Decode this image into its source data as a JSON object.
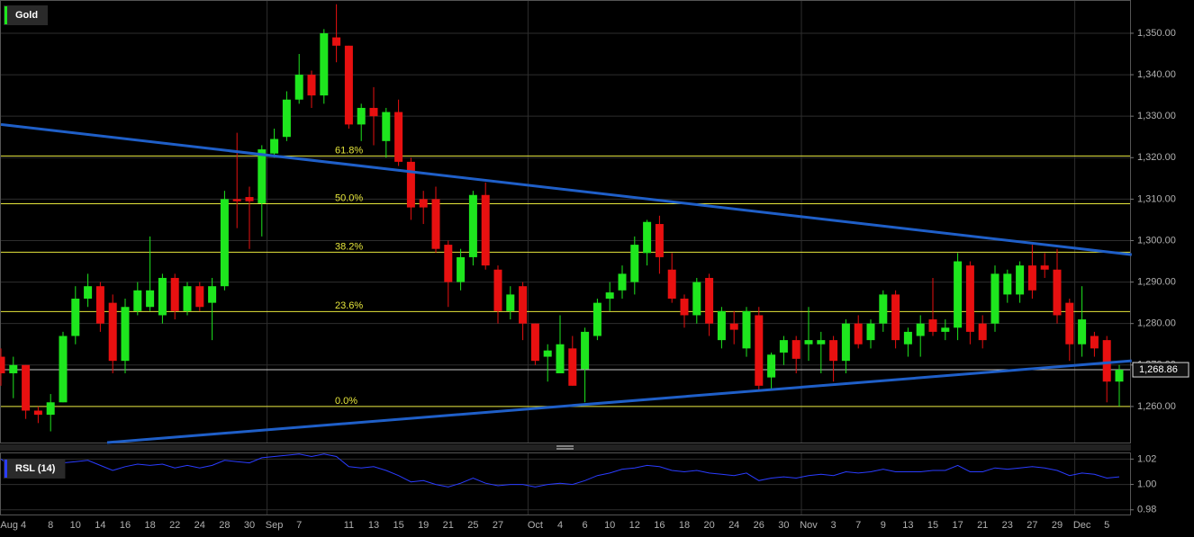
{
  "chart_data": [
    {
      "type": "candlestick",
      "title": "Gold",
      "categories": [
        null,
        "Aug 4",
        null,
        null,
        "8",
        null,
        "10",
        null,
        "14",
        null,
        "16",
        null,
        "18",
        null,
        "22",
        null,
        "24",
        null,
        "28",
        null,
        "30",
        null,
        "Sep",
        null,
        "7",
        null,
        null,
        null,
        "11",
        null,
        "13",
        null,
        "15",
        null,
        "19",
        null,
        "21",
        null,
        "25",
        null,
        "27",
        null,
        null,
        "Oct",
        null,
        "4",
        null,
        "6",
        null,
        "10",
        null,
        "12",
        null,
        "16",
        null,
        "18",
        null,
        "20",
        null,
        "24",
        null,
        "26",
        null,
        "30",
        null,
        "Nov",
        null,
        "3",
        null,
        "7",
        null,
        "9",
        null,
        "13",
        null,
        "15",
        null,
        "17",
        null,
        "21",
        null,
        "23",
        null,
        "27",
        null,
        "29",
        null,
        "Dec",
        null,
        "5",
        null
      ],
      "open": [
        1272,
        1268,
        1270,
        1259,
        1258,
        1261,
        1277,
        1286,
        1289,
        1285,
        1271,
        1283,
        1284,
        1282,
        1291,
        1283,
        1289,
        1285,
        1289,
        1310,
        1310.5,
        1309,
        1321,
        1325,
        1334,
        1340,
        1335,
        1349,
        1347,
        1328,
        1332,
        1324,
        1331,
        1319,
        1310,
        1310,
        1299,
        1290,
        1296,
        1311,
        1293,
        1283,
        1289,
        1280,
        1272,
        1268,
        1274,
        1269,
        1277,
        1286,
        1288,
        1290,
        1297,
        1304,
        1293,
        1286,
        1282,
        1291,
        1276,
        1280,
        1274,
        1282,
        1267,
        1273,
        1276,
        1275,
        1275,
        1276,
        1271,
        1280,
        1276,
        1280,
        1287,
        1275,
        1277,
        1281,
        1278,
        1279,
        1294,
        1280,
        1280,
        1287,
        1287,
        1294,
        1294,
        1293,
        1285,
        1275,
        1277,
        1276,
        1266
      ],
      "high": [
        1274,
        1272,
        1270,
        1260,
        1263,
        1278,
        1289,
        1292,
        1290,
        1287,
        1286,
        1290,
        1301,
        1292,
        1292,
        1290,
        1290,
        1291,
        1312,
        1326,
        1313,
        1323,
        1327,
        1336,
        1345,
        1341,
        1351,
        1357,
        1347,
        1333,
        1337,
        1332,
        1334,
        1320,
        1312,
        1313,
        1300,
        1298,
        1312,
        1314,
        1294,
        1289,
        1290,
        1280,
        1275,
        1282,
        1277,
        1279,
        1286,
        1290,
        1294,
        1301,
        1305,
        1306,
        1297,
        1287,
        1291,
        1292,
        1284,
        1283,
        1284,
        1284,
        1273,
        1277,
        1277,
        1284,
        1278,
        1277,
        1281,
        1282,
        1281,
        1288,
        1288,
        1279,
        1282,
        1291,
        1281,
        1297,
        1295,
        1282,
        1294,
        1293,
        1295,
        1299,
        1297,
        1298,
        1286,
        1289,
        1278,
        1277,
        1270
      ],
      "low": [
        1265,
        1262,
        1257,
        1256,
        1254,
        1261,
        1275,
        1284,
        1278,
        1268,
        1268,
        1282,
        1283,
        1280,
        1281,
        1282,
        1283,
        1276,
        1288,
        1303,
        1298,
        1301,
        1320,
        1324,
        1333,
        1332,
        1333,
        1343,
        1327,
        1324,
        1323,
        1320,
        1318,
        1305,
        1304,
        1297,
        1284,
        1288,
        1294,
        1293,
        1280,
        1281,
        1276,
        1270,
        1266,
        1268,
        1265,
        1261,
        1276,
        1283,
        1286,
        1287,
        1294,
        1292,
        1285,
        1279,
        1280,
        1277,
        1274,
        1275,
        1272,
        1264,
        1264,
        1270,
        1268,
        1271,
        1268,
        1266,
        1268,
        1274,
        1274,
        1278,
        1274,
        1272,
        1272,
        1277,
        1276,
        1276,
        1275,
        1274,
        1278,
        1285,
        1285,
        1286,
        1291,
        1280,
        1271,
        1272,
        1272,
        1261,
        1260
      ],
      "close": [
        1268,
        1270,
        1259,
        1258,
        1261,
        1277,
        1286,
        1289,
        1280,
        1271,
        1284,
        1288,
        1288,
        1291,
        1283,
        1289,
        1284,
        1289,
        1310,
        1309.5,
        1309.5,
        1322,
        1324.5,
        1334,
        1340,
        1335,
        1350,
        1347,
        1328,
        1332,
        1330,
        1331,
        1319,
        1308,
        1308,
        1298,
        1290,
        1296,
        1311,
        1294,
        1283,
        1287,
        1280,
        1271,
        1273.5,
        1275,
        1265,
        1278,
        1285,
        1287.5,
        1292,
        1299,
        1304.5,
        1296,
        1286,
        1282,
        1290,
        1280,
        1283,
        1278.5,
        1283,
        1265,
        1272.5,
        1276,
        1271.5,
        1276,
        1276,
        1271,
        1280,
        1275,
        1280,
        1287,
        1276,
        1278,
        1280,
        1278,
        1279,
        1295,
        1278,
        1276,
        1292,
        1292,
        1294,
        1288,
        1293,
        1282,
        1275,
        1281,
        1274,
        1266,
        1268.86
      ],
      "up_color": "#1ee61e",
      "down_color": "#e81010",
      "ylim": [
        1251.3,
        1357.8
      ],
      "yticks": [
        {
          "value": 1260,
          "label": "1,260.00"
        },
        {
          "value": 1270,
          "label": "1,270.00"
        },
        {
          "value": 1280,
          "label": "1,280.00"
        },
        {
          "value": 1290,
          "label": "1,290.00"
        },
        {
          "value": 1300,
          "label": "1,300.00"
        },
        {
          "value": 1310,
          "label": "1,310.00"
        },
        {
          "value": 1320,
          "label": "1,320.00"
        },
        {
          "value": 1330,
          "label": "1,330.00"
        },
        {
          "value": 1340,
          "label": "1,340.00"
        },
        {
          "value": 1350,
          "label": "1,350.00"
        }
      ],
      "levels": [
        {
          "label": "61.8%",
          "value": 1320.4
        },
        {
          "label": "50.0%",
          "value": 1308.9
        },
        {
          "label": "38.2%",
          "value": 1297.2
        },
        {
          "label": "23.6%",
          "value": 1282.9
        },
        {
          "label": "0.0%",
          "value": 1260
        }
      ],
      "level_color": "#e6e63c",
      "trendlines": [
        {
          "x": [
            0,
            91
          ],
          "y": [
            1328,
            1296.6
          ]
        },
        {
          "x": [
            8.55,
            91
          ],
          "y": [
            1251.3,
            1271
          ]
        }
      ],
      "trend_color": "#1f5fc8",
      "last": {
        "value": 1268.86,
        "label": "1,268.86"
      },
      "grid": true
    },
    {
      "type": "line",
      "title": "RSL (14)",
      "color": "#2a3cff",
      "values": [
        1.02,
        1.013,
        1.011,
        1.01,
        1.011,
        1.017,
        1.018,
        1.019,
        1.015,
        1.011,
        1.014,
        1.016,
        1.015,
        1.016,
        1.013,
        1.015,
        1.013,
        1.015,
        1.019,
        1.018,
        1.017,
        1.021,
        1.022,
        1.023,
        1.024,
        1.022,
        1.024,
        1.022,
        1.014,
        1.013,
        1.014,
        1.011,
        1.007,
        1.002,
        1.003,
        1.0,
        0.998,
        1.001,
        1.005,
        1.001,
        0.999,
        1.0,
        1.0,
        0.998,
        1.0,
        1.001,
        1.0,
        1.003,
        1.007,
        1.009,
        1.012,
        1.013,
        1.015,
        1.014,
        1.011,
        1.01,
        1.011,
        1.009,
        1.008,
        1.007,
        1.009,
        1.003,
        1.005,
        1.006,
        1.005,
        1.007,
        1.008,
        1.007,
        1.01,
        1.009,
        1.01,
        1.012,
        1.01,
        1.01,
        1.01,
        1.011,
        1.011,
        1.015,
        1.01,
        1.01,
        1.013,
        1.012,
        1.013,
        1.014,
        1.013,
        1.011,
        1.007,
        1.009,
        1.008,
        1.005,
        1.006
      ],
      "ylim": [
        0.9763,
        1.0245
      ],
      "yticks": [
        0.98,
        {
          "value": 1,
          "label": "1.00"
        },
        1.02
      ],
      "grid": true
    }
  ]
}
